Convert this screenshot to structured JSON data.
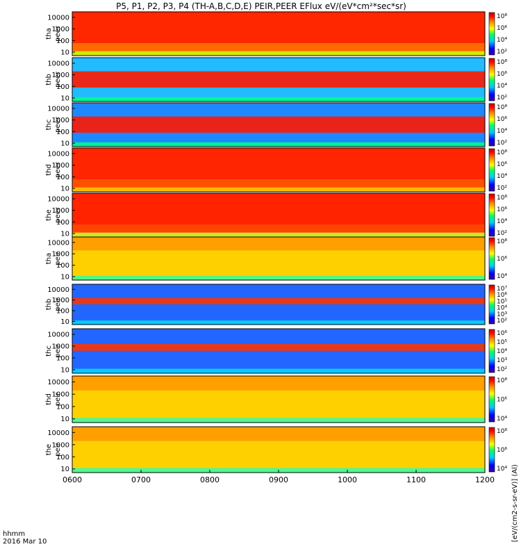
{
  "chart_data": {
    "type": "heatmap",
    "title": "P5, P1, P2, P3, P4 (TH-A,B,C,D,E) PEIR,PEER EFlux eV/(eV*cm²*sec*sr)",
    "x_ticks": [
      "0600",
      "0700",
      "0800",
      "0900",
      "1000",
      "1100",
      "1200"
    ],
    "x_range": [
      "0600",
      "1200"
    ],
    "x_label_line1": "hhmm",
    "x_label_line2": "2016 Mar 10",
    "y_ticks": [
      "10",
      "100",
      "1000",
      "10000"
    ],
    "y_scale": "log",
    "y_range": [
      5,
      30000
    ],
    "colorbar_units": "[eV/(cm2-s-sr-eV)] (Al)",
    "panels": [
      {
        "probe": "tha",
        "species": "peer",
        "label_line1": "tha",
        "label_line2": "peer",
        "cbar_ticks": [
          "10⁸",
          "10⁶",
          "10⁴",
          "10²"
        ],
        "band_color": "#ff2000",
        "bg_color": "#ff6a00",
        "low_color": "#ccff00"
      },
      {
        "probe": "thb",
        "species": "peer",
        "label_line1": "thb",
        "label_line2": "peer",
        "cbar_ticks": [
          "10⁸",
          "10⁶",
          "10⁴",
          "10²"
        ],
        "band_color": "#ff1800",
        "bg_color": "#22bbff",
        "low_color": "#00ff88"
      },
      {
        "probe": "thc",
        "species": "peer",
        "label_line1": "thc",
        "label_line2": "peer",
        "cbar_ticks": [
          "10⁸",
          "10⁶",
          "10⁴",
          "10²"
        ],
        "band_color": "#ff1800",
        "bg_color": "#1e88ff",
        "low_color": "#00ff88"
      },
      {
        "probe": "thd",
        "species": "peer",
        "label_line1": "thd",
        "label_line2": "peer",
        "cbar_ticks": [
          "10⁸",
          "10⁶",
          "10⁴",
          "10²"
        ],
        "band_color": "#ff2000",
        "bg_color": "#ff5000",
        "low_color": "#ffcc00"
      },
      {
        "probe": "the",
        "species": "peer",
        "label_line1": "the",
        "label_line2": "peer",
        "cbar_ticks": [
          "10⁸",
          "10⁶",
          "10⁴",
          "10²"
        ],
        "band_color": "#ff2000",
        "bg_color": "#ff4400",
        "low_color": "#ccff33"
      },
      {
        "probe": "tha",
        "species": "peir",
        "label_line1": "tha",
        "label_line2": "peir",
        "cbar_ticks": [
          "10⁸",
          "10⁶",
          "10⁴"
        ],
        "band_color": "#ff9900",
        "bg_color": "#ffd000",
        "low_color": "#33ff99"
      },
      {
        "probe": "thb",
        "species": "peir",
        "label_line1": "thb",
        "label_line2": "peir",
        "cbar_ticks": [
          "10⁷",
          "10⁶",
          "10⁵",
          "10⁴",
          "10³",
          "10²"
        ],
        "band_color": "#ff3300",
        "bg_color": "#2266ff",
        "low_color": "#00ddff"
      },
      {
        "probe": "thc",
        "species": "peir",
        "label_line1": "thc",
        "label_line2": "peir",
        "cbar_ticks": [
          "10⁶",
          "10⁵",
          "10⁴",
          "10³",
          "10²"
        ],
        "band_color": "#ff3300",
        "bg_color": "#2266ff",
        "low_color": "#00ddff"
      },
      {
        "probe": "thd",
        "species": "peir",
        "label_line1": "thd",
        "label_line2": "peir",
        "cbar_ticks": [
          "10⁸",
          "10⁶",
          "10⁴"
        ],
        "band_color": "#ff9900",
        "bg_color": "#ffd000",
        "low_color": "#33ffaa"
      },
      {
        "probe": "the",
        "species": "peir",
        "label_line1": "the",
        "label_line2": "peir",
        "cbar_ticks": [
          "10⁸",
          "10⁶",
          "10⁴"
        ],
        "band_color": "#ff9900",
        "bg_color": "#ffd000",
        "low_color": "#33ffaa"
      }
    ]
  }
}
